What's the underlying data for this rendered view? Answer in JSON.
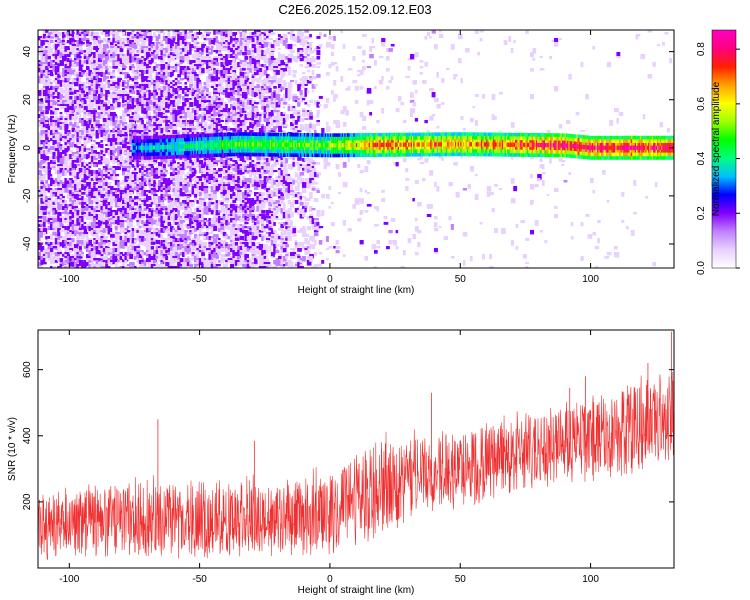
{
  "title": "C2E6.2025.152.09.12.E03",
  "chart_data": [
    {
      "type": "heatmap",
      "xlabel": "Height of straight line (km)",
      "ylabel": "Frequency (Hz)",
      "xlim": [
        -112,
        132
      ],
      "ylim": [
        -50,
        49
      ],
      "xticks": [
        -100,
        -50,
        0,
        50,
        100
      ],
      "yticks": [
        -40,
        -20,
        0,
        20,
        40
      ],
      "grid": false,
      "colorbar": {
        "label": "Normalized spectral amplitude",
        "range": [
          0,
          0.87
        ],
        "ticks": [
          0.0,
          0.2,
          0.4,
          0.6,
          0.8
        ],
        "colormap": [
          "#ffffff",
          "#e8d0ff",
          "#c080ff",
          "#8000ff",
          "#0000ff",
          "#00c0ff",
          "#00ff80",
          "#00ff00",
          "#a0ff00",
          "#ffff00",
          "#ffa000",
          "#ff2000",
          "#ff0080",
          "#ff00c0"
        ]
      },
      "signal_band": {
        "center_frequency_hz": [
          [
            -70,
            0.0
          ],
          [
            -35,
            1.5
          ],
          [
            0,
            1.0
          ],
          [
            50,
            1.5
          ],
          [
            90,
            1.0
          ],
          [
            100,
            0.0
          ],
          [
            132,
            0.0
          ]
        ],
        "peak_amplitude": [
          [
            -75,
            0.35
          ],
          [
            -35,
            0.5
          ],
          [
            0,
            0.55
          ],
          [
            20,
            0.75
          ],
          [
            50,
            0.7
          ],
          [
            88,
            0.85
          ],
          [
            100,
            0.87
          ],
          [
            132,
            0.85
          ]
        ]
      },
      "noise_fraction": [
        [
          -112,
          1.0
        ],
        [
          -30,
          0.95
        ],
        [
          0,
          0.3
        ],
        [
          50,
          0.15
        ],
        [
          132,
          0.05
        ]
      ]
    },
    {
      "type": "line",
      "xlabel": "Height of straight line (km)",
      "ylabel": "SNR (10 * v/v)",
      "xlim": [
        -112,
        132
      ],
      "ylim": [
        0,
        720
      ],
      "xticks": [
        -100,
        -50,
        0,
        50,
        100
      ],
      "yticks": [
        200,
        400,
        600
      ],
      "color": "#f03030",
      "envelope": {
        "x": [
          -112,
          -100,
          -80,
          -60,
          -40,
          -20,
          0,
          10,
          20,
          40,
          60,
          80,
          95,
          100,
          115,
          132
        ],
        "lower": [
          20,
          25,
          30,
          25,
          30,
          25,
          40,
          60,
          100,
          160,
          200,
          240,
          260,
          260,
          280,
          320
        ],
        "upper": [
          250,
          270,
          280,
          290,
          280,
          290,
          330,
          380,
          420,
          440,
          460,
          500,
          530,
          560,
          600,
          640
        ]
      },
      "spikes": [
        {
          "x": -66,
          "y": 450
        },
        {
          "x": -29,
          "y": 385
        },
        {
          "x": 39,
          "y": 530
        },
        {
          "x": 92,
          "y": 545
        },
        {
          "x": 98,
          "y": 580
        },
        {
          "x": 122,
          "y": 620
        },
        {
          "x": 131,
          "y": 715
        }
      ]
    }
  ]
}
